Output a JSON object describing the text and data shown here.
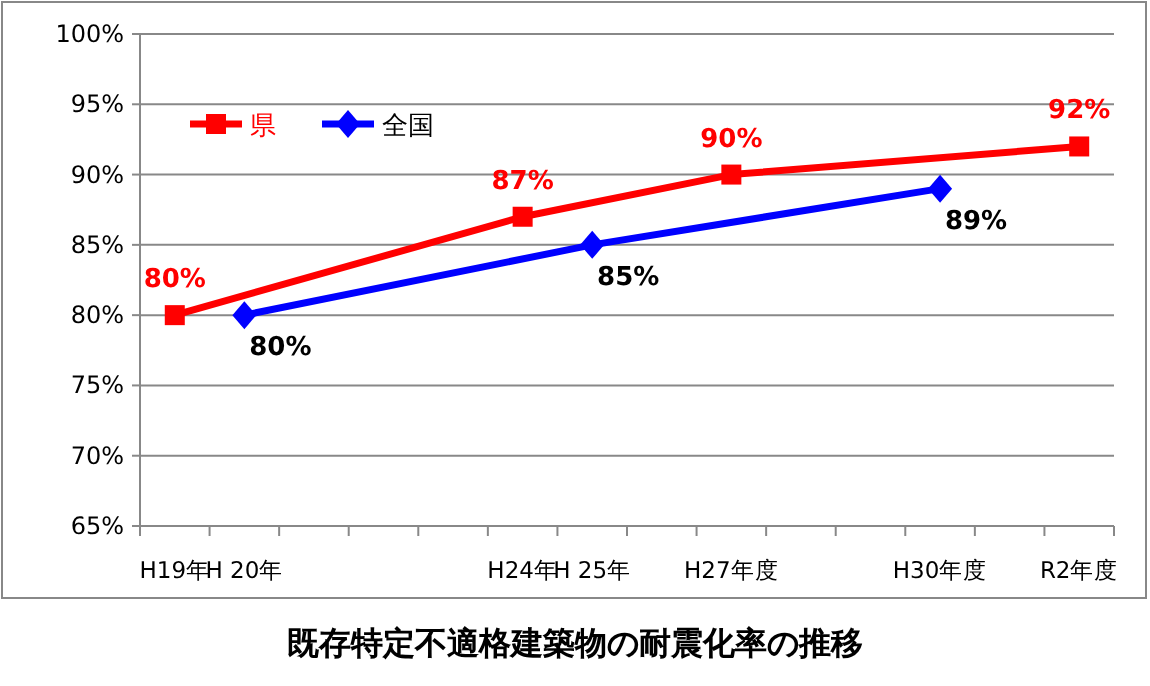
{
  "chart_data": {
    "type": "line",
    "title": "既存特定不適格建築物の耐震化率の推移",
    "categories": [
      "H19年",
      "H 20年",
      null,
      null,
      null,
      "H24年",
      "H 25年",
      null,
      "H27年度",
      null,
      null,
      "H30年度",
      null,
      "R2年度"
    ],
    "series": [
      {
        "name": "県",
        "color": "#ff0000",
        "marker": "square",
        "values": [
          80,
          null,
          null,
          null,
          null,
          87,
          null,
          null,
          90,
          null,
          null,
          null,
          null,
          92
        ],
        "value_labels": [
          "80%",
          null,
          null,
          null,
          null,
          "87%",
          null,
          null,
          "90%",
          null,
          null,
          null,
          null,
          "92%"
        ]
      },
      {
        "name": "全国",
        "color": "#0000ff",
        "marker": "diamond",
        "values": [
          null,
          80,
          null,
          null,
          null,
          null,
          85,
          null,
          null,
          null,
          null,
          89,
          null,
          null
        ],
        "value_labels": [
          null,
          "80%",
          null,
          null,
          null,
          null,
          "85%",
          null,
          null,
          null,
          null,
          "89%",
          null,
          null
        ]
      }
    ],
    "ylim": [
      65,
      100
    ],
    "yticks": [
      {
        "value": 65,
        "label": "65%"
      },
      {
        "value": 70,
        "label": "70%"
      },
      {
        "value": 75,
        "label": "75%"
      },
      {
        "value": 80,
        "label": "80%"
      },
      {
        "value": 85,
        "label": "85%"
      },
      {
        "value": 90,
        "label": "90%"
      },
      {
        "value": 95,
        "label": "95%"
      },
      {
        "value": 100,
        "label": "100%"
      }
    ],
    "grid": "y",
    "legend": "top left",
    "line_style": "solid"
  }
}
